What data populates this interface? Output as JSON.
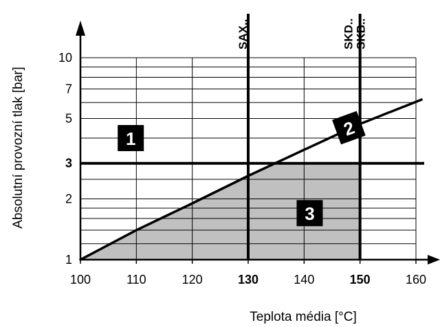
{
  "chart_data": {
    "type": "line",
    "xlabel": "Teplota média [°C]",
    "ylabel": "Absolutní provozní tlak [bar]",
    "x_scale": "linear",
    "y_scale": "log",
    "xlim": [
      100,
      170
    ],
    "ylim": [
      1,
      14
    ],
    "x_ticks": [
      {
        "value": 100,
        "label": "100",
        "bold": false
      },
      {
        "value": 110,
        "label": "110",
        "bold": false
      },
      {
        "value": 120,
        "label": "120",
        "bold": false
      },
      {
        "value": 130,
        "label": "130",
        "bold": true
      },
      {
        "value": 140,
        "label": "140",
        "bold": false
      },
      {
        "value": 150,
        "label": "150",
        "bold": true
      },
      {
        "value": 160,
        "label": "160",
        "bold": false
      }
    ],
    "y_ticks": [
      {
        "value": 1,
        "label": "1",
        "bold": false
      },
      {
        "value": 2,
        "label": "2",
        "bold": false
      },
      {
        "value": 3,
        "label": "3",
        "bold": true
      },
      {
        "value": 5,
        "label": "5",
        "bold": false
      },
      {
        "value": 7,
        "label": "7",
        "bold": false
      },
      {
        "value": 10,
        "label": "10",
        "bold": false
      }
    ],
    "horizontal_gridlines": [
      1.2,
      1.4,
      1.6,
      1.8,
      2,
      2.5,
      3,
      4,
      5,
      6,
      7,
      8,
      9,
      10
    ],
    "vertical_gridlines": [
      110,
      120,
      130,
      140,
      150,
      160
    ],
    "curve": {
      "x": [
        100,
        110,
        120,
        130,
        140,
        150,
        161
      ],
      "y": [
        1.0,
        1.4,
        1.9,
        2.6,
        3.5,
        4.7,
        6.2
      ]
    },
    "reference_lines": [
      {
        "orientation": "vertical",
        "value": 130,
        "labels": [
          "SAX.."
        ]
      },
      {
        "orientation": "vertical",
        "value": 150,
        "labels": [
          "SKD..",
          "SKB.."
        ]
      },
      {
        "orientation": "horizontal",
        "value": 3,
        "labels": []
      }
    ],
    "shaded_region": {
      "x_max": 150,
      "y_max": 3,
      "color": "#c0c0c0"
    },
    "zones": [
      {
        "label": "1",
        "x": 109,
        "y": 4.0
      },
      {
        "label": "2",
        "x": 148,
        "y": 4.5
      },
      {
        "label": "3",
        "x": 141,
        "y": 1.7
      }
    ],
    "grid": true,
    "legend": "none"
  }
}
